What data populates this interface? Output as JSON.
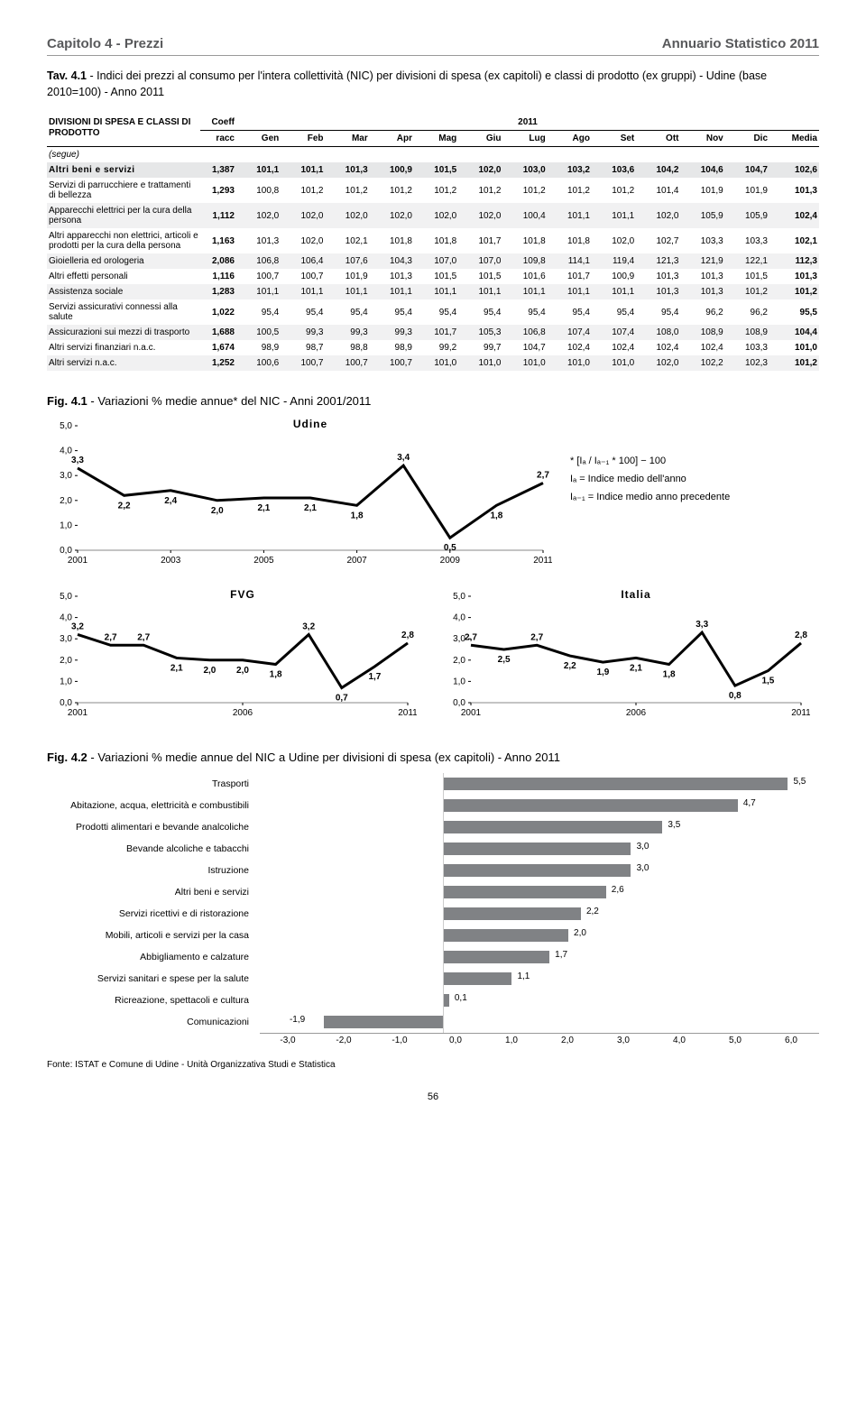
{
  "header": {
    "left": "Capitolo 4 - Prezzi",
    "right": "Annuario Statistico 2011"
  },
  "tav": {
    "num": "Tav. 4.1",
    "title": " - Indici dei prezzi al consumo per l'intera collettività (NIC) per divisioni di spesa (ex capitoli) e classi di prodotto (ex gruppi) - Udine (base 2010=100) - Anno 2011"
  },
  "table": {
    "col_group_label": "DIVISIONI DI SPESA E CLASSI DI PRODOTTO",
    "coeff_hdr1": "Coeff",
    "coeff_hdr2": "racc",
    "year": "2011",
    "months": [
      "Gen",
      "Feb",
      "Mar",
      "Apr",
      "Mag",
      "Giu",
      "Lug",
      "Ago",
      "Set",
      "Ott",
      "Nov",
      "Dic",
      "Media"
    ],
    "segue": "(segue)",
    "rows": [
      {
        "label": "Altri beni e servizi",
        "coeff": "1,387",
        "vals": [
          "101,1",
          "101,1",
          "101,3",
          "100,9",
          "101,5",
          "102,0",
          "103,0",
          "103,2",
          "103,6",
          "104,2",
          "104,6",
          "104,7",
          "102,6"
        ],
        "sec": true
      },
      {
        "label": "Servizi di parrucchiere e trattamenti di bellezza",
        "coeff": "1,293",
        "vals": [
          "100,8",
          "101,2",
          "101,2",
          "101,2",
          "101,2",
          "101,2",
          "101,2",
          "101,2",
          "101,2",
          "101,4",
          "101,9",
          "101,9",
          "101,3"
        ]
      },
      {
        "label": "Apparecchi elettrici per la cura della persona",
        "coeff": "1,112",
        "vals": [
          "102,0",
          "102,0",
          "102,0",
          "102,0",
          "102,0",
          "102,0",
          "100,4",
          "101,1",
          "101,1",
          "102,0",
          "105,9",
          "105,9",
          "102,4"
        ],
        "shade": true
      },
      {
        "label": "Altri apparecchi non elettrici, articoli e prodotti per la cura della persona",
        "coeff": "1,163",
        "vals": [
          "101,3",
          "102,0",
          "102,1",
          "101,8",
          "101,8",
          "101,7",
          "101,8",
          "101,8",
          "102,0",
          "102,7",
          "103,3",
          "103,3",
          "102,1"
        ]
      },
      {
        "label": "Gioielleria ed orologeria",
        "coeff": "2,086",
        "vals": [
          "106,8",
          "106,4",
          "107,6",
          "104,3",
          "107,0",
          "107,0",
          "109,8",
          "114,1",
          "119,4",
          "121,3",
          "121,9",
          "122,1",
          "112,3"
        ],
        "shade": true
      },
      {
        "label": "Altri effetti personali",
        "coeff": "1,116",
        "vals": [
          "100,7",
          "100,7",
          "101,9",
          "101,3",
          "101,5",
          "101,5",
          "101,6",
          "101,7",
          "100,9",
          "101,3",
          "101,3",
          "101,5",
          "101,3"
        ]
      },
      {
        "label": "Assistenza sociale",
        "coeff": "1,283",
        "vals": [
          "101,1",
          "101,1",
          "101,1",
          "101,1",
          "101,1",
          "101,1",
          "101,1",
          "101,1",
          "101,1",
          "101,3",
          "101,3",
          "101,2",
          "101,2"
        ],
        "shade": true
      },
      {
        "label": "Servizi assicurativi connessi alla salute",
        "coeff": "1,022",
        "vals": [
          "95,4",
          "95,4",
          "95,4",
          "95,4",
          "95,4",
          "95,4",
          "95,4",
          "95,4",
          "95,4",
          "95,4",
          "96,2",
          "96,2",
          "95,5"
        ]
      },
      {
        "label": "Assicurazioni sui mezzi di trasporto",
        "coeff": "1,688",
        "vals": [
          "100,5",
          "99,3",
          "99,3",
          "99,3",
          "101,7",
          "105,3",
          "106,8",
          "107,4",
          "107,4",
          "108,0",
          "108,9",
          "108,9",
          "104,4"
        ],
        "shade": true
      },
      {
        "label": "Altri servizi finanziari n.a.c.",
        "coeff": "1,674",
        "vals": [
          "98,9",
          "98,7",
          "98,8",
          "98,9",
          "99,2",
          "99,7",
          "104,7",
          "102,4",
          "102,4",
          "102,4",
          "102,4",
          "103,3",
          "101,0"
        ]
      },
      {
        "label": "Altri servizi n.a.c.",
        "coeff": "1,252",
        "vals": [
          "100,6",
          "100,7",
          "100,7",
          "100,7",
          "101,0",
          "101,0",
          "101,0",
          "101,0",
          "101,0",
          "102,0",
          "102,2",
          "102,3",
          "101,2"
        ],
        "shade": true
      }
    ]
  },
  "fig41": {
    "num": "Fig. 4.1",
    "title": " - Variazioni % medie annue* del NIC - Anni 2001/2011",
    "formula1": "* [Iₐ / Iₐ₋₁ * 100] − 100",
    "formula2": "Iₐ = Indice medio dell'anno",
    "formula3": "Iₐ₋₁ = Indice medio anno precedente",
    "charts": {
      "udine": {
        "title": "Udine",
        "years": [
          "2001",
          "2003",
          "2005",
          "2007",
          "2009",
          "2011"
        ],
        "ylim": [
          0,
          5
        ],
        "yticks": [
          "0,0",
          "1,0",
          "2,0",
          "3,0",
          "4,0",
          "5,0"
        ],
        "points": [
          3.3,
          2.2,
          2.4,
          2.0,
          2.1,
          2.1,
          1.8,
          3.4,
          0.5,
          1.8,
          2.7
        ],
        "labels": [
          "3,3",
          "2,2",
          "2,4",
          "2,0",
          "2,1",
          "2,1",
          "1,8",
          "3,4",
          "0,5",
          "1,8",
          "2,7"
        ],
        "line_color": "#000000",
        "line_width": 3
      },
      "fvg": {
        "title": "FVG",
        "years": [
          "2001",
          "2006",
          "2011"
        ],
        "ylim": [
          0,
          5
        ],
        "yticks": [
          "0,0",
          "1,0",
          "2,0",
          "3,0",
          "4,0",
          "5,0"
        ],
        "points": [
          3.2,
          2.7,
          2.7,
          2.1,
          2.0,
          2.0,
          1.8,
          3.2,
          0.7,
          1.7,
          2.8
        ],
        "labels": [
          "3,2",
          "2,7",
          "2,7",
          "2,1",
          "2,0",
          "2,0",
          "1,8",
          "3,2",
          "0,7",
          "1,7",
          "2,8"
        ],
        "line_color": "#000000",
        "line_width": 3
      },
      "italia": {
        "title": "Italia",
        "years": [
          "2001",
          "2006",
          "2011"
        ],
        "ylim": [
          0,
          5
        ],
        "yticks": [
          "0,0",
          "1,0",
          "2,0",
          "3,0",
          "4,0",
          "5,0"
        ],
        "points": [
          2.7,
          2.5,
          2.7,
          2.2,
          1.9,
          2.1,
          1.8,
          3.3,
          0.8,
          1.5,
          2.8
        ],
        "labels": [
          "2,7",
          "2,5",
          "2,7",
          "2,2",
          "1,9",
          "2,1",
          "1,8",
          "3,3",
          "0,8",
          "1,5",
          "2,8"
        ],
        "line_color": "#000000",
        "line_width": 3
      }
    }
  },
  "fig42": {
    "num": "Fig. 4.2",
    "title": " - Variazioni % medie annue del NIC a Udine per divisioni di spesa (ex capitoli) - Anno 2011",
    "xmin": -3.0,
    "xmax": 6.0,
    "xticks": [
      "-3,0",
      "-2,0",
      "-1,0",
      "0,0",
      "1,0",
      "2,0",
      "3,0",
      "4,0",
      "5,0",
      "6,0"
    ],
    "bar_color": "#808285",
    "bars": [
      {
        "label": "Trasporti",
        "val": 5.5,
        "txt": "5,5"
      },
      {
        "label": "Abitazione, acqua, elettricità e combustibili",
        "val": 4.7,
        "txt": "4,7"
      },
      {
        "label": "Prodotti alimentari e bevande analcoliche",
        "val": 3.5,
        "txt": "3,5"
      },
      {
        "label": "Bevande alcoliche e tabacchi",
        "val": 3.0,
        "txt": "3,0"
      },
      {
        "label": "Istruzione",
        "val": 3.0,
        "txt": "3,0"
      },
      {
        "label": "Altri beni e servizi",
        "val": 2.6,
        "txt": "2,6"
      },
      {
        "label": "Servizi ricettivi e di ristorazione",
        "val": 2.2,
        "txt": "2,2"
      },
      {
        "label": "Mobili, articoli e servizi per la casa",
        "val": 2.0,
        "txt": "2,0"
      },
      {
        "label": "Abbigliamento e calzature",
        "val": 1.7,
        "txt": "1,7"
      },
      {
        "label": "Servizi sanitari e spese per la salute",
        "val": 1.1,
        "txt": "1,1"
      },
      {
        "label": "Ricreazione, spettacoli e cultura",
        "val": 0.1,
        "txt": "0,1"
      },
      {
        "label": "Comunicazioni",
        "val": -1.9,
        "txt": "-1,9"
      }
    ]
  },
  "fonte": "Fonte: ISTAT e Comune di Udine - Unità Organizzativa Studi e Statistica",
  "pagenum": "56"
}
